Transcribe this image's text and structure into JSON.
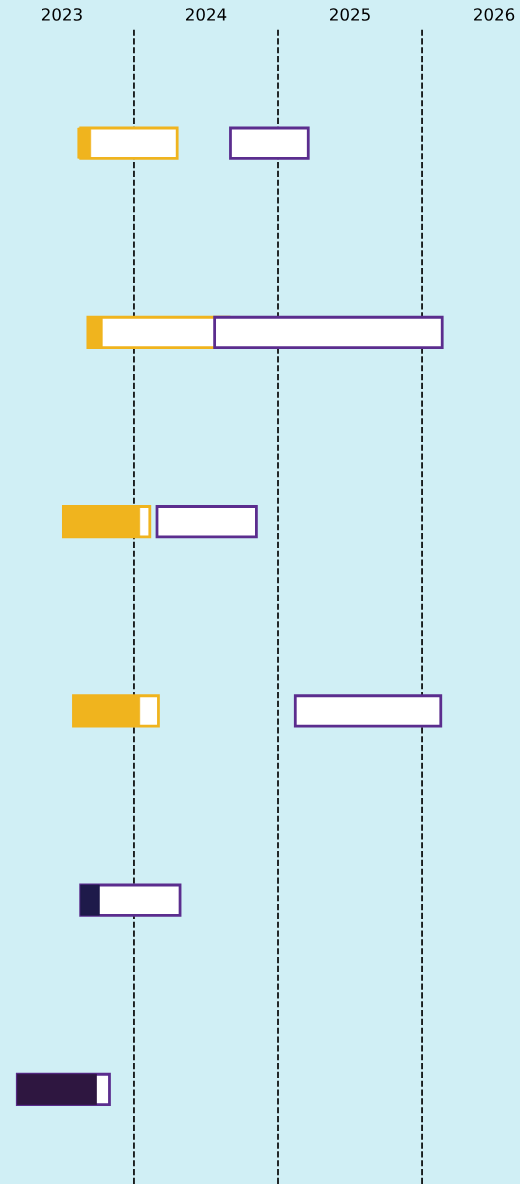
{
  "chart_data": {
    "type": "bar",
    "orientation": "horizontal",
    "categories": [
      null,
      null,
      null,
      null,
      null,
      null
    ],
    "series": [
      {
        "color": "#f0b41e",
        "base": [
          2023.13,
          2023.18,
          2023.01,
          2023.08,
          null,
          null
        ],
        "values": [
          0.67,
          0.98,
          0.6,
          0.59,
          null,
          null
        ]
      },
      {
        "color": "#5b2d8e",
        "base": [
          2024.17,
          2024.06,
          2023.66,
          2024.62,
          2023.13,
          2022.69
        ],
        "values": [
          0.54,
          1.58,
          0.69,
          1.01,
          0.69,
          0.64
        ]
      },
      {
        "colors": [
          "#f0b41e",
          "#f0b41e",
          "#f0b41e",
          "#f0b41e",
          "#1e1a4a",
          "#2e1640"
        ],
        "base": [
          2023.11,
          2023.18,
          2023.01,
          2023.08,
          2023.13,
          2022.69
        ],
        "values": [
          0.09,
          0.1,
          0.53,
          0.46,
          0.13,
          0.55
        ]
      }
    ],
    "xlim": [
      2022.57,
      2026.18
    ],
    "xticks": [
      2023,
      2024,
      2025,
      2026
    ],
    "tick_labels": "x",
    "ref_lines": [
      {
        "axis": "x",
        "value": 2023.5,
        "color": "#000000",
        "line_style": "dashed"
      },
      {
        "axis": "x",
        "value": 2024.5,
        "color": "#000000",
        "line_style": "dashed"
      },
      {
        "axis": "x",
        "value": 2025.5,
        "color": "#000000",
        "line_style": "dashed"
      }
    ],
    "grid": false,
    "legend": false
  }
}
